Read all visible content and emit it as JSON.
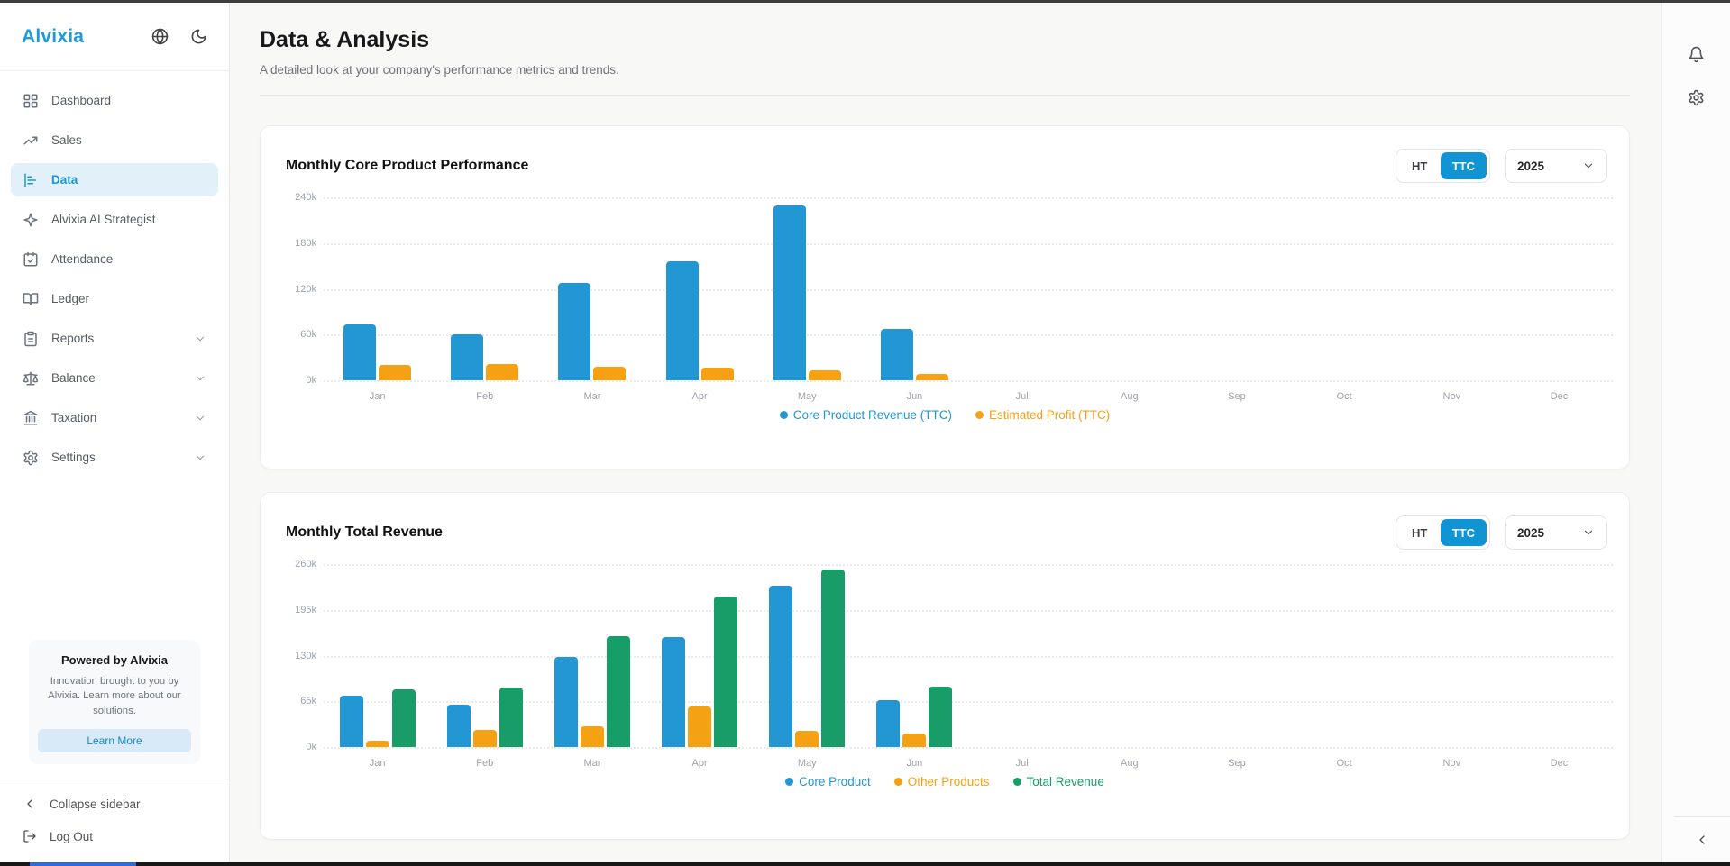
{
  "app": {
    "name": "Alvixia"
  },
  "colors": {
    "blue": "#2397d3",
    "orange": "#f5a114",
    "green": "#189d68"
  },
  "sidebar": {
    "logo": "Alvixia",
    "items": [
      {
        "label": "Dashboard",
        "icon": "dashboard",
        "active": false,
        "chevron": false
      },
      {
        "label": "Sales",
        "icon": "sales",
        "active": false,
        "chevron": false
      },
      {
        "label": "Data",
        "icon": "data",
        "active": true,
        "chevron": false
      },
      {
        "label": "Alvixia AI Strategist",
        "icon": "sparkle",
        "active": false,
        "chevron": false
      },
      {
        "label": "Attendance",
        "icon": "calendar-check",
        "active": false,
        "chevron": false
      },
      {
        "label": "Ledger",
        "icon": "book-open",
        "active": false,
        "chevron": false
      },
      {
        "label": "Reports",
        "icon": "clipboard",
        "active": false,
        "chevron": true
      },
      {
        "label": "Balance",
        "icon": "scale",
        "active": false,
        "chevron": true
      },
      {
        "label": "Taxation",
        "icon": "landmark",
        "active": false,
        "chevron": true
      },
      {
        "label": "Settings",
        "icon": "gear",
        "active": false,
        "chevron": true
      }
    ],
    "promo": {
      "title": "Powered by Alvixia",
      "body": "Innovation brought to you by Alvixia. Learn more about our solutions.",
      "button": "Learn More"
    },
    "footer": [
      {
        "label": "Collapse sidebar",
        "icon": "chevron-left"
      },
      {
        "label": "Log Out",
        "icon": "log-out"
      }
    ]
  },
  "page": {
    "title": "Data & Analysis",
    "subtitle": "A detailed look at your company's performance metrics and trends."
  },
  "charts": [
    {
      "title": "Monthly Core Product Performance",
      "controls": {
        "ht": "HT",
        "ttc": "TTC",
        "active": "TTC",
        "year": "2025"
      },
      "chart_data": {
        "type": "bar",
        "categories": [
          "Jan",
          "Feb",
          "Mar",
          "Apr",
          "May",
          "Jun",
          "Jul",
          "Aug",
          "Sep",
          "Oct",
          "Nov",
          "Dec"
        ],
        "ymax": 240,
        "yticks": [
          "0k",
          "60k",
          "120k",
          "180k",
          "240k"
        ],
        "ytick_values": [
          0,
          60,
          120,
          180,
          240
        ],
        "grid": "dotted",
        "legend_position": "bottom",
        "series": [
          {
            "name": "Core Product Revenue (TTC)",
            "color": "blue",
            "values": [
              73,
              60,
              128,
              156,
              229,
              67,
              0,
              0,
              0,
              0,
              0,
              0
            ]
          },
          {
            "name": "Estimated Profit (TTC)",
            "color": "orange",
            "values": [
              20,
              21,
              18,
              16,
              13,
              8,
              0,
              0,
              0,
              0,
              0,
              0
            ]
          }
        ]
      }
    },
    {
      "title": "Monthly Total Revenue",
      "controls": {
        "ht": "HT",
        "ttc": "TTC",
        "active": "TTC",
        "year": "2025"
      },
      "chart_data": {
        "type": "bar",
        "categories": [
          "Jan",
          "Feb",
          "Mar",
          "Apr",
          "May",
          "Jun",
          "Jul",
          "Aug",
          "Sep",
          "Oct",
          "Nov",
          "Dec"
        ],
        "ymax": 260,
        "yticks": [
          "0k",
          "65k",
          "130k",
          "195k",
          "260k"
        ],
        "ytick_values": [
          0,
          65,
          130,
          195,
          260
        ],
        "grid": "dotted",
        "legend_position": "bottom",
        "series": [
          {
            "name": "Core Product",
            "color": "blue",
            "values": [
              73,
              60,
              128,
              156,
              229,
              67,
              0,
              0,
              0,
              0,
              0,
              0
            ]
          },
          {
            "name": "Other Products",
            "color": "orange",
            "values": [
              9,
              24,
              30,
              58,
              23,
              19,
              0,
              0,
              0,
              0,
              0,
              0
            ]
          },
          {
            "name": "Total Revenue",
            "color": "green",
            "values": [
              82,
              84,
              158,
              214,
              252,
              86,
              0,
              0,
              0,
              0,
              0,
              0
            ]
          }
        ]
      }
    }
  ],
  "right_rail": {
    "icons": [
      "bell",
      "gear"
    ],
    "collapse": "chevron-left"
  }
}
